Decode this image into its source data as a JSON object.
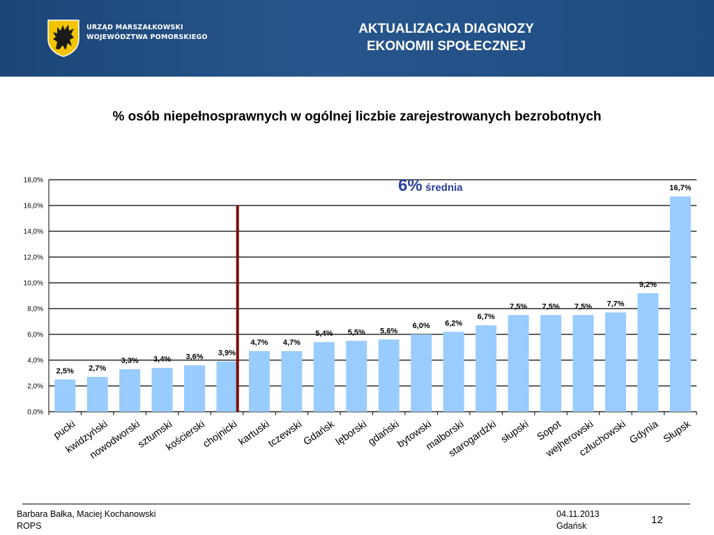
{
  "header": {
    "org_line1": "URZĄD MARSZAŁKOWSKI",
    "org_line2": "WOJEWÓDZTWA POMORSKIEGO",
    "title_line1": "AKTUALIZACJA DIAGNOZY",
    "title_line2": "EKONOMII SPOŁECZNEJ"
  },
  "chart_data": {
    "type": "bar",
    "title": "% osób niepełnosprawnych w ogólnej liczbie zarejestrowanych bezrobotnych",
    "categories": [
      "pucki",
      "kwidzyński",
      "nowodworski",
      "sztumski",
      "kościerski",
      "chojnicki",
      "kartuski",
      "tczewski",
      "Gdańsk",
      "lęborski",
      "gdański",
      "bytowski",
      "malborski",
      "starogardzki",
      "słupski",
      "Sopot",
      "wejherowski",
      "człuchowski",
      "Gdynia",
      "Słupsk"
    ],
    "values": [
      2.5,
      2.7,
      3.3,
      3.4,
      3.6,
      3.9,
      4.7,
      4.7,
      5.4,
      5.5,
      5.6,
      6.0,
      6.2,
      6.7,
      7.5,
      7.5,
      7.5,
      7.7,
      9.2,
      16.7
    ],
    "data_labels": [
      "2,5%",
      "2,7%",
      "3,3%",
      "3,4%",
      "3,6%",
      "3,9%",
      "4,7%",
      "4,7%",
      "5,4%",
      "5,5%",
      "5,6%",
      "6,0%",
      "6,2%",
      "6,7%",
      "7,5%",
      "7,5%",
      "7,5%",
      "7,7%",
      "9,2%",
      "16,7%"
    ],
    "ylim": [
      0,
      18
    ],
    "yticks": [
      0,
      2,
      4,
      6,
      8,
      10,
      12,
      14,
      16,
      18
    ],
    "ytick_labels": [
      "0,0%",
      "2,0%",
      "4,0%",
      "6,0%",
      "8,0%",
      "10,0%",
      "12,0%",
      "14,0%",
      "16,0%",
      "18,0%"
    ],
    "grid": true,
    "bar_color": "#99ccff",
    "average": {
      "value": 6,
      "label_value": "6%",
      "label_text": "średnia",
      "color": "#7a0b0b",
      "label_color": "#2b3f9e"
    }
  },
  "footer": {
    "authors": "Barbara Bałka, Maciej Kochanowski",
    "org": "ROPS",
    "date": "04.11.2013",
    "city": "Gdańsk",
    "page": "12"
  }
}
